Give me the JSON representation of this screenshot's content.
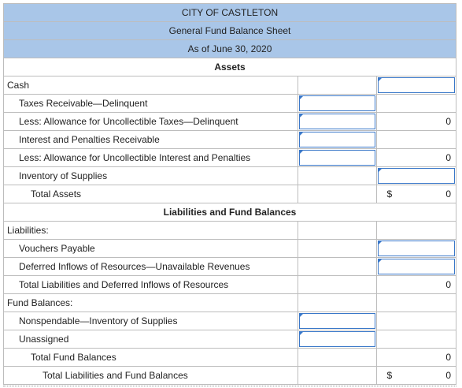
{
  "header": {
    "city": "CITY OF CASTLETON",
    "fund": "General Fund Balance Sheet",
    "date": "As of June 30, 2020",
    "assets": "Assets"
  },
  "assets": {
    "cash": "Cash",
    "taxes_receivable": "Taxes Receivable—Delinquent",
    "less_allowance_taxes": "Less: Allowance for Uncollectible Taxes—Delinquent",
    "less_allowance_taxes_value": "0",
    "interest_penalties": "Interest and Penalties Receivable",
    "less_allowance_interest": "Less: Allowance for Uncollectible Interest and Penalties",
    "less_allowance_interest_value": "0",
    "inventory": "Inventory of Supplies",
    "total_assets": "Total Assets",
    "total_assets_symbol": "$",
    "total_assets_value": "0"
  },
  "liabilities_section": {
    "heading": "Liabilities and Fund Balances",
    "liabilities": "Liabilities:",
    "vouchers_payable": "Vouchers Payable",
    "deferred_inflows": "Deferred Inflows of Resources—Unavailable Revenues",
    "total_liabilities": "Total Liabilities and Deferred Inflows of Resources",
    "total_liabilities_value": "0",
    "fund_balances": "Fund Balances:",
    "nonspendable": "Nonspendable—Inventory of Supplies",
    "unassigned": "Unassigned",
    "total_fund_balances": "Total Fund Balances",
    "total_fund_balances_value": "0",
    "total_liab_fund": "Total Liabilities and Fund Balances",
    "total_liab_fund_symbol": "$",
    "total_liab_fund_value": "0"
  }
}
